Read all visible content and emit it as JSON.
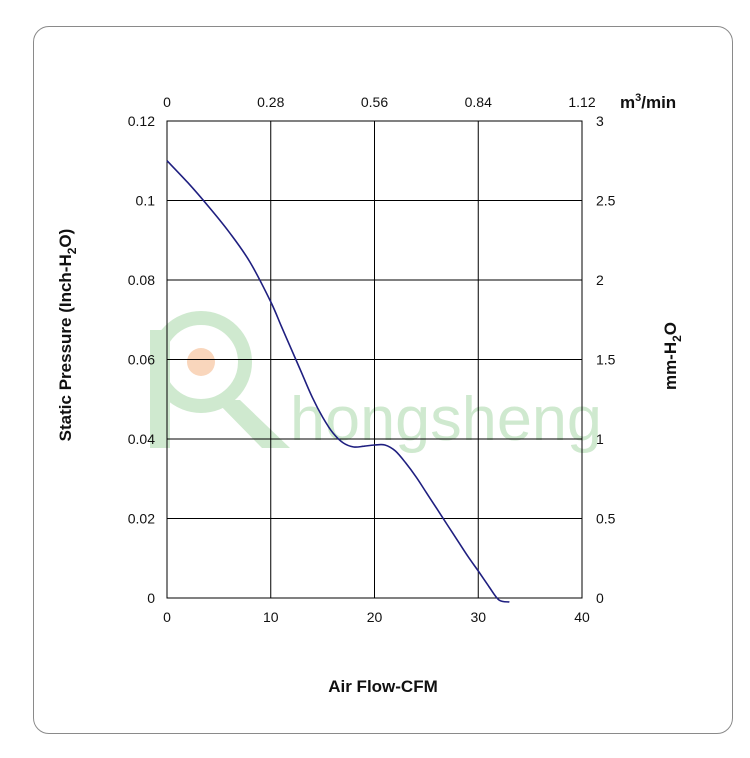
{
  "chart_data": {
    "type": "line",
    "x_axis": {
      "label": "Air Flow-CFM",
      "range": [
        0,
        40
      ],
      "ticks": [
        "0",
        "10",
        "20",
        "30",
        "40"
      ]
    },
    "x2_axis": {
      "unit_prefix": "m",
      "unit_power": "3",
      "unit_suffix": "/min",
      "range": [
        0,
        1.12
      ],
      "ticks": [
        "0",
        "0.28",
        "0.56",
        "0.84",
        "1.12"
      ]
    },
    "y_axis": {
      "label_prefix": "Static Pressure (Inch-H",
      "label_sub": "2",
      "label_suffix": "O)",
      "range": [
        0,
        0.12
      ],
      "ticks": [
        "0",
        "0.02",
        "0.04",
        "0.06",
        "0.08",
        "0.1",
        "0.12"
      ]
    },
    "y2_axis": {
      "label_prefix": "mm-H",
      "label_sub": "2",
      "label_suffix": "O",
      "range": [
        0,
        3
      ],
      "ticks": [
        "0",
        "0.5",
        "1",
        "1.5",
        "2",
        "2.5",
        "3"
      ]
    },
    "grid": true,
    "series": [
      {
        "color": "#1f1f80",
        "x": [
          0,
          2,
          4,
          6,
          8,
          10,
          11,
          12,
          13,
          14,
          15,
          16,
          17,
          18,
          19,
          20,
          21,
          22,
          23,
          24,
          25,
          26,
          27,
          28,
          29,
          30,
          31,
          32,
          33
        ],
        "y": [
          0.11,
          0.1045,
          0.0985,
          0.092,
          0.0845,
          0.0745,
          0.0685,
          0.0625,
          0.0565,
          0.0505,
          0.0455,
          0.0415,
          0.039,
          0.038,
          0.0382,
          0.0385,
          0.0385,
          0.037,
          0.034,
          0.0305,
          0.0265,
          0.0225,
          0.0185,
          0.0145,
          0.0105,
          0.0068,
          0.003,
          -0.0005,
          -0.001
        ]
      }
    ],
    "watermark": {
      "text": "hongsheng",
      "color": "#cfe9cf",
      "accent_color": "#f9d6bc"
    }
  }
}
